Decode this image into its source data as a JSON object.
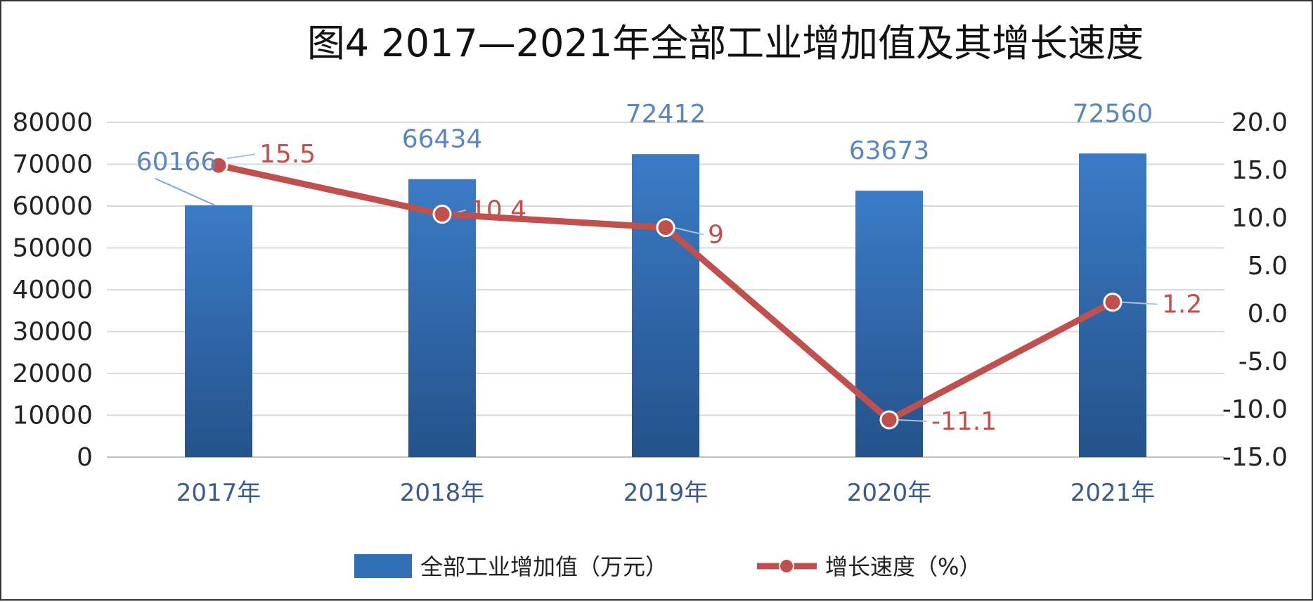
{
  "chart_data": {
    "type": "bar+line",
    "title": "图4  2017—2021年全部工业增加值及其增长速度",
    "categories": [
      "2017年",
      "2018年",
      "2019年",
      "2020年",
      "2021年"
    ],
    "series": [
      {
        "name": "全部工业增加值（万元）",
        "type": "bar",
        "axis": "left",
        "values": [
          60166,
          66434,
          72412,
          63673,
          72560
        ],
        "labels": [
          "60166",
          "66434",
          "72412",
          "63673",
          "72560"
        ]
      },
      {
        "name": "增长速度（%）",
        "type": "line",
        "axis": "right",
        "values": [
          15.5,
          10.4,
          9,
          -11.1,
          1.2
        ],
        "labels": [
          "15.5",
          "10.4",
          "9",
          "-11.1",
          "1.2"
        ]
      }
    ],
    "y_left": {
      "min": 0,
      "max": 80000,
      "ticks": [
        "80000",
        "70000",
        "60000",
        "50000",
        "40000",
        "30000",
        "20000",
        "10000",
        "0"
      ]
    },
    "y_right": {
      "min": -15,
      "max": 20,
      "ticks": [
        "20.0",
        "15.0",
        "10.0",
        "5.0",
        "0.0",
        "-5.0",
        "-10.0",
        "-15.0"
      ]
    },
    "grid": true,
    "legend": "bottom",
    "colors": {
      "bar": "#2f6db5",
      "bar_dark": "#24528a",
      "line": "#c0504d",
      "grid": "#d9d9d9"
    }
  }
}
